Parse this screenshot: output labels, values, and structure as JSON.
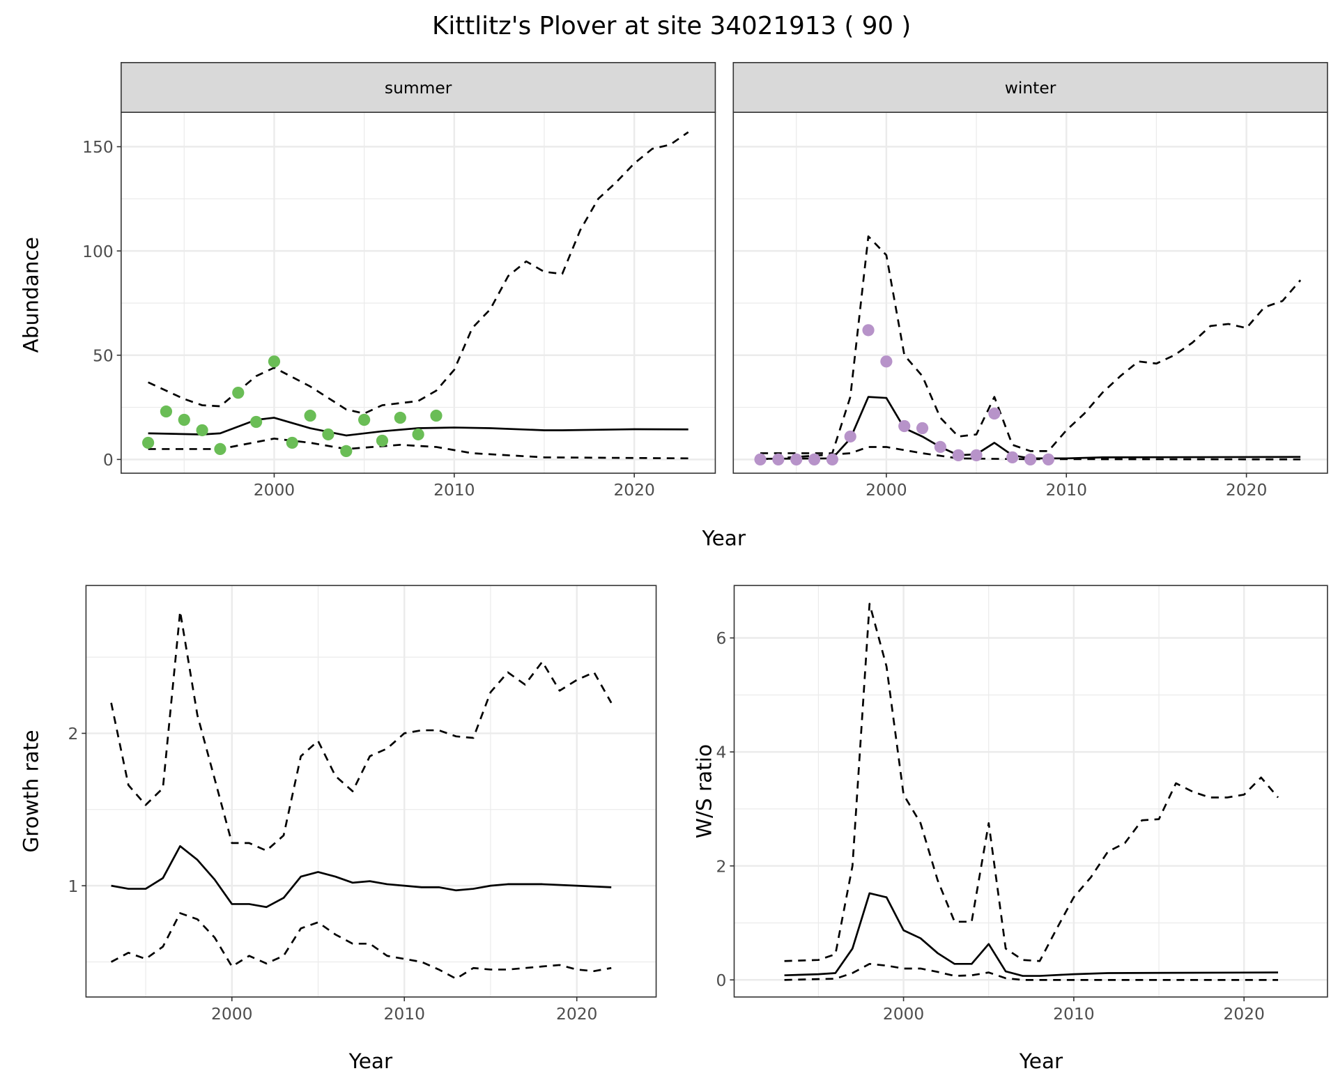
{
  "title": "Kittlitz's Plover at site 34021913 ( 90 )",
  "colors": {
    "summer_points": "#6abd56",
    "winter_points": "#b793c9",
    "line": "#000000",
    "grid": "#ebebeb",
    "strip": "#d9d9d9"
  },
  "chart_data": [
    {
      "type": "line",
      "panel": "summer",
      "strip_label": "summer",
      "xlabel": "Year",
      "ylabel": "Abundance",
      "xlim": [
        1991.5,
        2024.5
      ],
      "ylim": [
        -6.6,
        166.5
      ],
      "xticks": [
        2000,
        2010,
        2020
      ],
      "xtick_labels": [
        "2000",
        "2010",
        "2020"
      ],
      "xminor": [
        1995,
        2005,
        2015
      ],
      "yticks": [
        0,
        50,
        100,
        150
      ],
      "ytick_labels": [
        "0",
        "50",
        "100",
        "150"
      ],
      "yminor": [
        25,
        75,
        125
      ],
      "points": {
        "x": [
          1993,
          1994,
          1995,
          1996,
          1997,
          1998,
          1999,
          2000,
          2001,
          2002,
          2003,
          2004,
          2005,
          2006,
          2007,
          2008,
          2009
        ],
        "y": [
          8,
          23,
          19,
          14,
          5,
          32,
          18,
          47,
          8,
          21,
          12,
          4,
          19,
          9,
          20,
          12,
          21
        ]
      },
      "series": [
        {
          "name": "mean",
          "style": "solid",
          "x": [
            1993,
            1996,
            1997,
            1999,
            2000,
            2002,
            2004,
            2006,
            2008,
            2010,
            2012,
            2015,
            2016,
            2020,
            2023
          ],
          "y": [
            12.5,
            12,
            12.5,
            19,
            20,
            15,
            11.5,
            13.5,
            15,
            15.3,
            15,
            14,
            14,
            14.5,
            14.4
          ]
        },
        {
          "name": "upper",
          "style": "dashed",
          "x": [
            1993,
            1995,
            1996,
            1997,
            1999,
            2000,
            2002,
            2004,
            2005,
            2006,
            2008,
            2009,
            2010,
            2011,
            2012,
            2013,
            2014,
            2015,
            2016,
            2017,
            2018,
            2019,
            2020,
            2021,
            2022,
            2023
          ],
          "y": [
            37,
            29,
            26,
            25.5,
            40,
            44,
            35,
            24,
            22,
            26,
            28,
            33,
            43,
            63,
            72,
            88,
            95,
            90,
            89,
            110,
            125,
            133,
            142,
            149,
            151,
            157
          ]
        },
        {
          "name": "lower",
          "style": "dashed",
          "x": [
            1993,
            1997,
            2000,
            2002,
            2004,
            2007,
            2009,
            2011,
            2015,
            2023
          ],
          "y": [
            5,
            5,
            10,
            8,
            5,
            7,
            6,
            3,
            1,
            0.5
          ]
        }
      ]
    },
    {
      "type": "line",
      "panel": "winter",
      "strip_label": "winter",
      "xlim": [
        1991.5,
        2024.5
      ],
      "ylim": [
        -6.6,
        166.5
      ],
      "xticks": [
        2000,
        2010,
        2020
      ],
      "xtick_labels": [
        "2000",
        "2010",
        "2020"
      ],
      "xminor": [
        1995,
        2005,
        2015
      ],
      "yticks": [
        0,
        50,
        100,
        150
      ],
      "yminor": [
        25,
        75,
        125
      ],
      "points": {
        "x": [
          1993,
          1994,
          1995,
          1996,
          1997,
          1998,
          1999,
          2000,
          2001,
          2002,
          2003,
          2004,
          2005,
          2006,
          2007,
          2008,
          2009
        ],
        "y": [
          0,
          0,
          0,
          0,
          0,
          11,
          62,
          47,
          16,
          15,
          6,
          2,
          2,
          22,
          1,
          0,
          0
        ]
      },
      "series": [
        {
          "name": "mean",
          "style": "solid",
          "x": [
            1993,
            1997,
            1998,
            1999,
            2000,
            2001,
            2002,
            2003,
            2004,
            2005,
            2006,
            2007,
            2008,
            2010,
            2012,
            2023
          ],
          "y": [
            0.3,
            0.5,
            10,
            30,
            29.5,
            15,
            11,
            6,
            2,
            2.5,
            8,
            2,
            0.5,
            0.5,
            1,
            1.2
          ]
        },
        {
          "name": "upper",
          "style": "dashed",
          "x": [
            1993,
            1997,
            1998,
            1999,
            2000,
            2001,
            2002,
            2003,
            2004,
            2005,
            2006,
            2007,
            2008,
            2009,
            2010,
            2011,
            2012,
            2013,
            2014,
            2015,
            2016,
            2017,
            2018,
            2019,
            2020,
            2021,
            2022,
            2023
          ],
          "y": [
            3,
            3,
            30,
            107,
            98,
            50,
            40,
            20,
            11,
            12,
            30,
            7,
            4,
            4,
            14,
            22,
            32,
            40,
            47,
            46,
            50,
            56,
            64,
            65,
            63,
            73,
            76,
            86
          ]
        },
        {
          "name": "lower",
          "style": "dashed",
          "x": [
            1993,
            1998,
            1999,
            2000,
            2002,
            2004,
            2007,
            2023
          ],
          "y": [
            0,
            3,
            6,
            6,
            3,
            0.5,
            0.2,
            0
          ]
        }
      ]
    },
    {
      "type": "line",
      "panel": "growth",
      "xlabel": "Year",
      "ylabel": "Growth rate",
      "xlim": [
        1991.54,
        2024.6
      ],
      "ylim": [
        0.27,
        2.97
      ],
      "xticks": [
        2000,
        2010,
        2020
      ],
      "xtick_labels": [
        "2000",
        "2010",
        "2020"
      ],
      "xminor": [
        1995,
        2005,
        2015
      ],
      "yticks": [
        1,
        2
      ],
      "ytick_labels": [
        "1",
        "2"
      ],
      "yminor": [
        0.5,
        1.5,
        2.5
      ],
      "series": [
        {
          "name": "mean",
          "style": "solid",
          "x": [
            1993,
            1994,
            1995,
            1996,
            1997,
            1998,
            1999,
            2000,
            2001,
            2002,
            2003,
            2004,
            2005,
            2006,
            2007,
            2008,
            2009,
            2010,
            2011,
            2012,
            2013,
            2014,
            2015,
            2016,
            2018,
            2020,
            2022
          ],
          "y": [
            1.0,
            0.98,
            0.98,
            1.05,
            1.26,
            1.17,
            1.04,
            0.88,
            0.88,
            0.86,
            0.92,
            1.06,
            1.09,
            1.06,
            1.02,
            1.03,
            1.01,
            1.0,
            0.99,
            0.99,
            0.97,
            0.98,
            1.0,
            1.01,
            1.01,
            1.0,
            0.99
          ]
        },
        {
          "name": "upper",
          "style": "dashed",
          "x": [
            1993,
            1994,
            1995,
            1996,
            1997,
            1998,
            1999,
            2000,
            2001,
            2002,
            2003,
            2004,
            2005,
            2006,
            2007,
            2008,
            2009,
            2010,
            2011,
            2012,
            2013,
            2014,
            2015,
            2016,
            2017,
            2018,
            2019,
            2020,
            2021,
            2022
          ],
          "y": [
            2.2,
            1.66,
            1.53,
            1.64,
            2.8,
            2.12,
            1.7,
            1.28,
            1.28,
            1.23,
            1.33,
            1.85,
            1.95,
            1.72,
            1.62,
            1.85,
            1.9,
            2.0,
            2.02,
            2.02,
            1.98,
            1.97,
            2.27,
            2.4,
            2.32,
            2.47,
            2.28,
            2.35,
            2.4,
            2.2
          ]
        },
        {
          "name": "lower",
          "style": "dashed",
          "x": [
            1993,
            1994,
            1995,
            1996,
            1997,
            1998,
            1999,
            2000,
            2001,
            2002,
            2003,
            2004,
            2005,
            2006,
            2007,
            2008,
            2009,
            2010,
            2011,
            2012,
            2013,
            2014,
            2015,
            2016,
            2017,
            2018,
            2019,
            2020,
            2021,
            2022
          ],
          "y": [
            0.5,
            0.56,
            0.52,
            0.6,
            0.82,
            0.78,
            0.66,
            0.47,
            0.54,
            0.49,
            0.54,
            0.72,
            0.76,
            0.68,
            0.62,
            0.62,
            0.54,
            0.52,
            0.5,
            0.45,
            0.39,
            0.46,
            0.45,
            0.45,
            0.46,
            0.47,
            0.48,
            0.45,
            0.44,
            0.46
          ]
        }
      ]
    },
    {
      "type": "line",
      "panel": "ratio",
      "xlabel": "Year",
      "ylabel": "W/S ratio",
      "xlim": [
        1990.05,
        2024.9
      ],
      "ylim": [
        -0.3,
        6.92
      ],
      "xticks": [
        2000,
        2010,
        2020
      ],
      "xtick_labels": [
        "2000",
        "2010",
        "2020"
      ],
      "xminor": [
        1995,
        2005,
        2015
      ],
      "yticks": [
        0,
        2,
        4,
        6
      ],
      "ytick_labels": [
        "0",
        "2",
        "4",
        "6"
      ],
      "yminor": [
        1,
        3,
        5
      ],
      "series": [
        {
          "name": "mean",
          "style": "solid",
          "x": [
            1993,
            1995,
            1996,
            1997,
            1998,
            1999,
            2000,
            2001,
            2002,
            2003,
            2004,
            2005,
            2006,
            2007,
            2008,
            2010,
            2012,
            2022
          ],
          "y": [
            0.08,
            0.1,
            0.12,
            0.55,
            1.52,
            1.45,
            0.87,
            0.73,
            0.47,
            0.28,
            0.28,
            0.63,
            0.15,
            0.07,
            0.07,
            0.1,
            0.12,
            0.13
          ]
        },
        {
          "name": "upper",
          "style": "dashed",
          "x": [
            1993,
            1995,
            1996,
            1997,
            1998,
            1999,
            2000,
            2001,
            2002,
            2003,
            2004,
            2005,
            2006,
            2007,
            2008,
            2009,
            2010,
            2011,
            2012,
            2013,
            2014,
            2015,
            2016,
            2017,
            2018,
            2019,
            2020,
            2021,
            2022
          ],
          "y": [
            0.33,
            0.35,
            0.45,
            2.0,
            6.6,
            5.5,
            3.25,
            2.75,
            1.75,
            1.02,
            1.02,
            2.75,
            0.55,
            0.35,
            0.33,
            0.9,
            1.45,
            1.8,
            2.25,
            2.4,
            2.8,
            2.82,
            3.45,
            3.3,
            3.2,
            3.2,
            3.25,
            3.55,
            3.2
          ]
        },
        {
          "name": "lower",
          "style": "dashed",
          "x": [
            1993,
            1996,
            1997,
            1998,
            1999,
            2000,
            2001,
            2002,
            2003,
            2004,
            2005,
            2006,
            2007,
            2022
          ],
          "y": [
            0,
            0.02,
            0.12,
            0.28,
            0.25,
            0.2,
            0.2,
            0.14,
            0.07,
            0.08,
            0.13,
            0.03,
            0,
            0
          ]
        }
      ]
    }
  ]
}
